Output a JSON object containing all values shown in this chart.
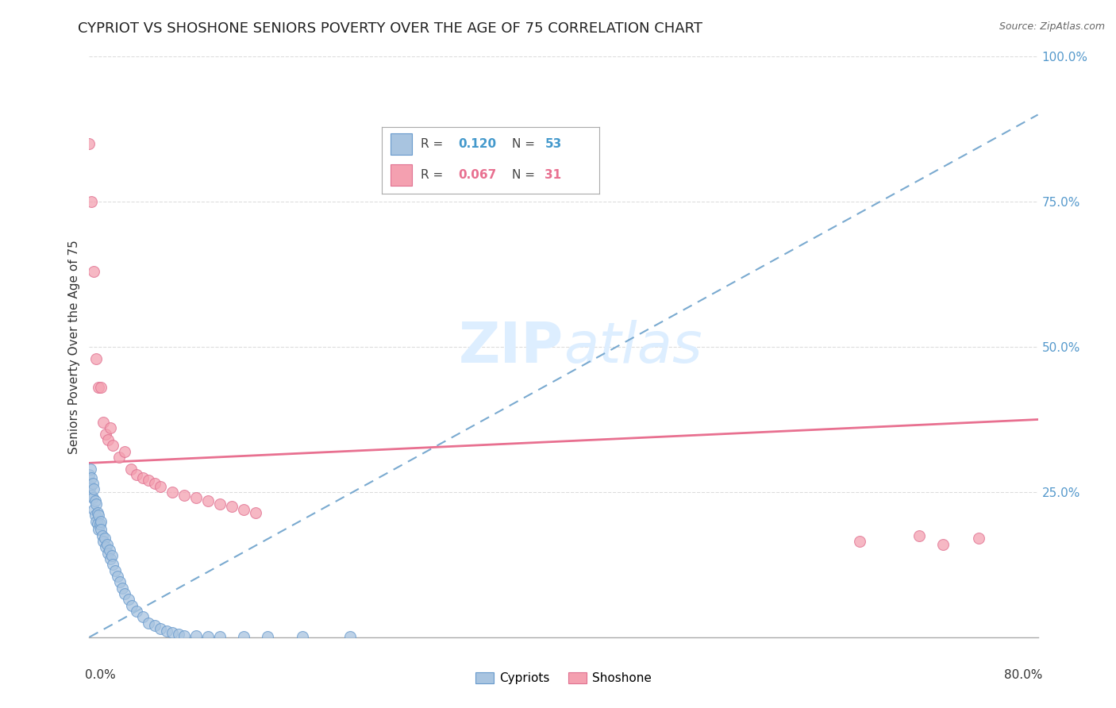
{
  "title": "CYPRIOT VS SHOSHONE SENIORS POVERTY OVER THE AGE OF 75 CORRELATION CHART",
  "source": "Source: ZipAtlas.com",
  "ylabel": "Seniors Poverty Over the Age of 75",
  "xlim": [
    0.0,
    0.8
  ],
  "ylim": [
    0.0,
    1.0
  ],
  "ytick_labels": [
    "",
    "25.0%",
    "50.0%",
    "75.0%",
    "100.0%"
  ],
  "ytick_vals": [
    0.0,
    0.25,
    0.5,
    0.75,
    1.0
  ],
  "legend_r1": "R = 0.120",
  "legend_n1": "N = 53",
  "legend_r2": "R = 0.067",
  "legend_n2": "N = 31",
  "cypriot_color": "#A8C4E0",
  "shoshone_color": "#F4A0B0",
  "cypriot_edge": "#6699CC",
  "shoshone_edge": "#E07090",
  "cypriot_trend_color": "#7AAAD0",
  "shoshone_trend_color": "#E87090",
  "grid_color": "#DDDDDD",
  "watermark_color": "#DDEEFF",
  "background_color": "#FFFFFF",
  "cypriot_x": [
    0.0,
    0.001,
    0.001,
    0.002,
    0.002,
    0.003,
    0.003,
    0.004,
    0.004,
    0.005,
    0.005,
    0.006,
    0.006,
    0.007,
    0.007,
    0.008,
    0.008,
    0.009,
    0.01,
    0.01,
    0.011,
    0.012,
    0.013,
    0.014,
    0.015,
    0.016,
    0.017,
    0.018,
    0.019,
    0.02,
    0.022,
    0.024,
    0.026,
    0.028,
    0.03,
    0.033,
    0.036,
    0.04,
    0.045,
    0.05,
    0.055,
    0.06,
    0.065,
    0.07,
    0.075,
    0.08,
    0.09,
    0.1,
    0.11,
    0.13,
    0.15,
    0.18,
    0.22
  ],
  "cypriot_y": [
    0.28,
    0.29,
    0.26,
    0.275,
    0.245,
    0.265,
    0.24,
    0.255,
    0.22,
    0.235,
    0.21,
    0.23,
    0.2,
    0.215,
    0.195,
    0.21,
    0.185,
    0.195,
    0.2,
    0.185,
    0.175,
    0.165,
    0.17,
    0.155,
    0.16,
    0.145,
    0.15,
    0.135,
    0.14,
    0.125,
    0.115,
    0.105,
    0.095,
    0.085,
    0.075,
    0.065,
    0.055,
    0.045,
    0.035,
    0.025,
    0.02,
    0.015,
    0.01,
    0.008,
    0.005,
    0.003,
    0.002,
    0.001,
    0.001,
    0.001,
    0.001,
    0.001,
    0.001
  ],
  "shoshone_x": [
    0.0,
    0.002,
    0.004,
    0.006,
    0.008,
    0.01,
    0.012,
    0.014,
    0.016,
    0.018,
    0.02,
    0.025,
    0.03,
    0.035,
    0.04,
    0.045,
    0.05,
    0.055,
    0.06,
    0.07,
    0.08,
    0.09,
    0.1,
    0.11,
    0.12,
    0.13,
    0.14,
    0.65,
    0.7,
    0.72,
    0.75
  ],
  "shoshone_y": [
    0.85,
    0.75,
    0.63,
    0.48,
    0.43,
    0.43,
    0.37,
    0.35,
    0.34,
    0.36,
    0.33,
    0.31,
    0.32,
    0.29,
    0.28,
    0.275,
    0.27,
    0.265,
    0.26,
    0.25,
    0.245,
    0.24,
    0.235,
    0.23,
    0.225,
    0.22,
    0.215,
    0.165,
    0.175,
    0.16,
    0.17
  ],
  "cypriot_trend": [
    0.0,
    0.0,
    0.8,
    0.9
  ],
  "shoshone_trend": [
    0.0,
    0.3,
    0.8,
    0.375
  ]
}
